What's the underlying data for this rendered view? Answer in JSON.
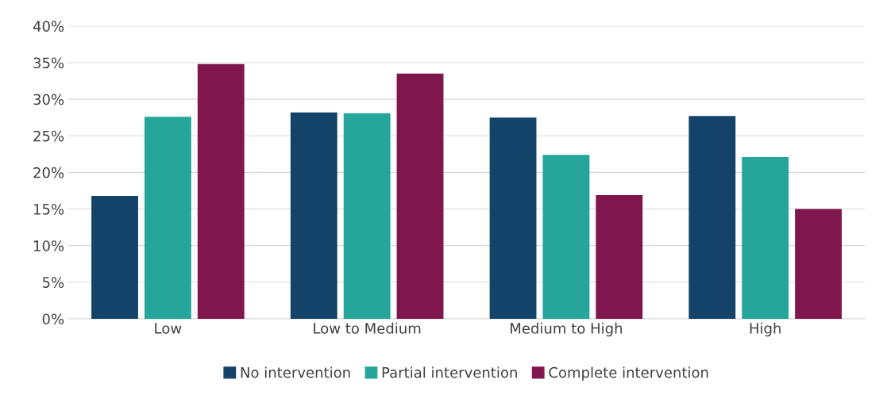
{
  "chart_data": {
    "type": "bar",
    "categories": [
      "Low",
      "Low to Medium",
      "Medium to High",
      "High"
    ],
    "series": [
      {
        "name": "No intervention",
        "color": "#134369",
        "values": [
          16.8,
          28.2,
          27.5,
          27.7
        ]
      },
      {
        "name": "Partial intervention",
        "color": "#26a69a",
        "values": [
          27.6,
          28.1,
          22.4,
          22.1
        ]
      },
      {
        "name": "Complete intervention",
        "color": "#80164e",
        "values": [
          34.8,
          33.5,
          16.9,
          15.0
        ]
      }
    ],
    "ylim": [
      0,
      40
    ],
    "yticks": [
      {
        "value": 0,
        "label": "0%"
      },
      {
        "value": 5,
        "label": "5%"
      },
      {
        "value": 10,
        "label": "10%"
      },
      {
        "value": 15,
        "label": "15%"
      },
      {
        "value": 20,
        "label": "20%"
      },
      {
        "value": 25,
        "label": "25%"
      },
      {
        "value": 30,
        "label": "30%"
      },
      {
        "value": 35,
        "label": "35%"
      },
      {
        "value": 40,
        "label": "40%"
      }
    ],
    "grid": "y",
    "legend": "bottom"
  }
}
